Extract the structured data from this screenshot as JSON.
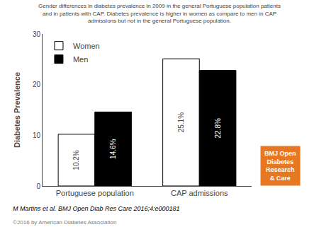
{
  "chart_data": {
    "type": "bar",
    "title": "Gender differences in diabetes prevalence in 2009 in the general Portuguese population patients\nand in patients with CAP. Diabetes prevalence is higher in women as compare to men in CAP\nadmissions but not in the general Portuguese population.",
    "categories": [
      "Portuguese population",
      "CAP admissions"
    ],
    "series": [
      {
        "name": "Women",
        "color": "#ffffff",
        "values": [
          10.2,
          25.1
        ],
        "value_labels": [
          "10.2%",
          "25.1%"
        ]
      },
      {
        "name": "Men",
        "color": "#000000",
        "values": [
          14.6,
          22.8
        ],
        "value_labels": [
          "14.6%",
          "22.8%"
        ]
      }
    ],
    "ylabel": "Diabetes Prevalence",
    "ylim": [
      0,
      30
    ],
    "yticks": [
      0,
      10,
      20,
      30
    ],
    "grid": false,
    "legend": "upper left",
    "data_labels": true,
    "annotations": [
      "M Martins et al. BMJ Open Diab Res Care 2016;4:e000181",
      "©2016 by American Diabetes Association",
      "BMJ Open\nDiabetes\nResearch\n& Care"
    ]
  }
}
